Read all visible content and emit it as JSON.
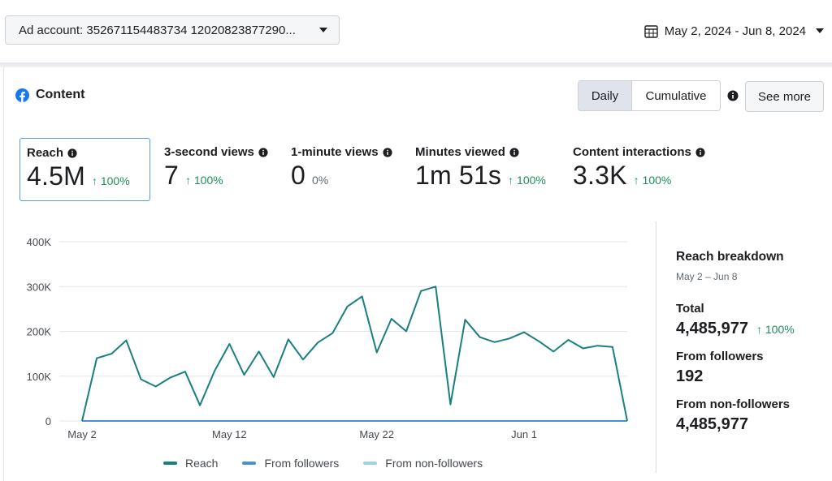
{
  "header": {
    "account_label": "Ad account: 352671154483734 12020823877290...",
    "date_range": "May 2, 2024 - Jun 8, 2024"
  },
  "card": {
    "title": "Content",
    "toggle": {
      "daily": "Daily",
      "cumulative": "Cumulative"
    },
    "see_more": "See more"
  },
  "metrics": [
    {
      "label": "Reach",
      "value": "4.5M",
      "change": "↑ 100%"
    },
    {
      "label": "3-second views",
      "value": "7",
      "change": "↑ 100%"
    },
    {
      "label": "1-minute views",
      "value": "0",
      "change": "0%"
    },
    {
      "label": "Minutes viewed",
      "value": "1m 51s",
      "change": "↑ 100%"
    },
    {
      "label": "Content interactions",
      "value": "3.3K",
      "change": "↑ 100%"
    }
  ],
  "chart_data": {
    "type": "line",
    "ylim": [
      0,
      400000
    ],
    "y_ticks": [
      "400K",
      "300K",
      "200K",
      "100K",
      "0"
    ],
    "x_ticks": [
      "May 2",
      "May 12",
      "May 22",
      "Jun 1"
    ],
    "x_tick_dates": [
      "2024-05-02",
      "2024-05-12",
      "2024-05-22",
      "2024-06-01"
    ],
    "x": [
      "2024-05-02",
      "2024-05-03",
      "2024-05-04",
      "2024-05-05",
      "2024-05-06",
      "2024-05-07",
      "2024-05-08",
      "2024-05-09",
      "2024-05-10",
      "2024-05-11",
      "2024-05-12",
      "2024-05-13",
      "2024-05-14",
      "2024-05-15",
      "2024-05-16",
      "2024-05-17",
      "2024-05-18",
      "2024-05-19",
      "2024-05-20",
      "2024-05-21",
      "2024-05-22",
      "2024-05-23",
      "2024-05-24",
      "2024-05-25",
      "2024-05-26",
      "2024-05-27",
      "2024-05-28",
      "2024-05-29",
      "2024-05-30",
      "2024-05-31",
      "2024-06-01",
      "2024-06-02",
      "2024-06-03",
      "2024-06-04",
      "2024-06-05",
      "2024-06-06",
      "2024-06-07",
      "2024-06-08"
    ],
    "series": [
      {
        "name": "Reach",
        "color": "#1a7f7f",
        "values": [
          0,
          140000,
          150000,
          180000,
          93000,
          77000,
          97000,
          110000,
          35000,
          112000,
          172000,
          103000,
          155000,
          98000,
          182000,
          137000,
          175000,
          196000,
          255000,
          278000,
          153000,
          228000,
          200000,
          290000,
          300000,
          37000,
          226000,
          187000,
          176000,
          184000,
          198000,
          178000,
          155000,
          181000,
          162000,
          168000,
          165000,
          0
        ]
      },
      {
        "name": "From followers",
        "color": "#4a90d9",
        "values": [
          0,
          0,
          0,
          0,
          0,
          0,
          0,
          0,
          0,
          0,
          0,
          0,
          0,
          0,
          0,
          0,
          0,
          0,
          0,
          0,
          0,
          0,
          0,
          0,
          0,
          0,
          0,
          0,
          0,
          0,
          0,
          0,
          0,
          0,
          0,
          0,
          0,
          0
        ]
      },
      {
        "name": "From non-followers",
        "color": "#9fd0f0",
        "values": [
          0,
          0,
          0,
          0,
          0,
          0,
          0,
          0,
          0,
          0,
          0,
          0,
          0,
          0,
          0,
          0,
          0,
          0,
          0,
          0,
          0,
          0,
          0,
          0,
          0,
          0,
          0,
          0,
          0,
          0,
          0,
          0,
          0,
          0,
          0,
          0,
          0,
          0
        ]
      }
    ],
    "grid": true,
    "legend": "bottom"
  },
  "breakdown": {
    "title": "Reach breakdown",
    "subtitle": "May 2 – Jun 8",
    "total_label": "Total",
    "total_value": "4,485,977",
    "total_change": "↑ 100%",
    "followers_label": "From followers",
    "followers_value": "192",
    "nonfollowers_label": "From non-followers",
    "nonfollowers_value": "4,485,977"
  }
}
